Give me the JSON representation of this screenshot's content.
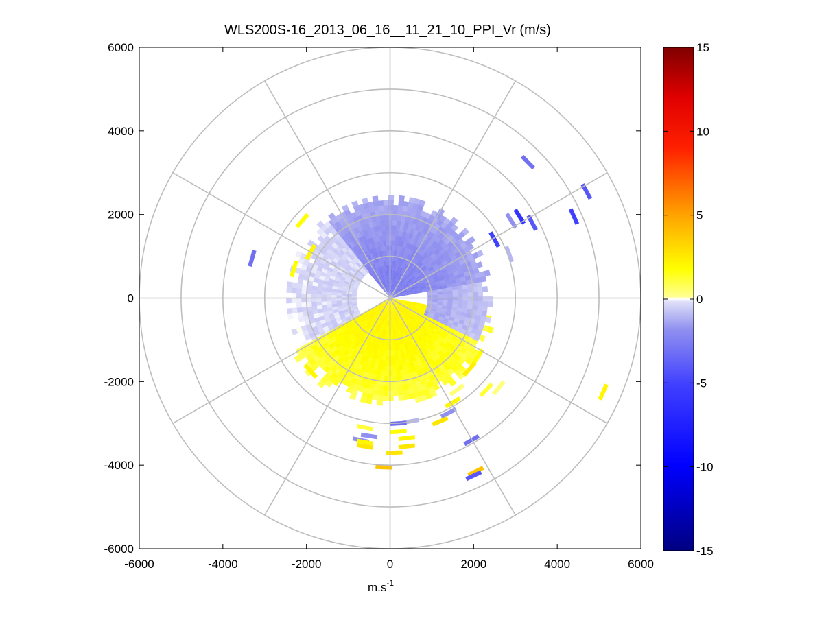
{
  "chart_data": {
    "type": "heatmap",
    "subtype": "polar-ppi",
    "title": "WLS200S-16_2013_06_16__11_21_10_PPI_Vr (m/s)",
    "xlabel": "m.s",
    "xlabel_superscript": "-1",
    "ylabel": "",
    "xlim": [
      -6000,
      6000
    ],
    "ylim": [
      -6000,
      6000
    ],
    "xticks": [
      -6000,
      -4000,
      -2000,
      0,
      2000,
      4000,
      6000
    ],
    "yticks": [
      -6000,
      -4000,
      -2000,
      0,
      2000,
      4000,
      6000
    ],
    "xtick_labels": [
      "-6000",
      "-4000",
      "-2000",
      "0",
      "2000",
      "4000",
      "6000"
    ],
    "ytick_labels": [
      "-6000",
      "-4000",
      "-2000",
      "0",
      "2000",
      "4000",
      "6000"
    ],
    "polar_grid": {
      "rings_m": [
        1000,
        2000,
        3000,
        4000,
        5000,
        6000
      ],
      "spokes_deg": [
        0,
        30,
        60,
        90,
        120,
        150,
        180,
        210,
        240,
        270,
        300,
        330
      ]
    },
    "colorbar": {
      "range": [
        -15,
        15
      ],
      "ticks": [
        -15,
        -10,
        -5,
        0,
        5,
        10,
        15
      ],
      "tick_labels": [
        "-15",
        "-10",
        "-5",
        "0",
        "5",
        "10",
        "15"
      ],
      "colormap": "blue-white-yellow-red"
    },
    "field": {
      "description_units": "radial velocity m/s",
      "north_sector": {
        "az_from_deg": -40,
        "az_to_deg": 80,
        "r_min_m": 0,
        "r_max_m": 2450,
        "vr_mean": -2.5
      },
      "west_sector": {
        "az_from_deg": 240,
        "az_to_deg": 320,
        "r_min_m": 800,
        "r_max_m": 2450,
        "vr_mean": -0.5
      },
      "south_sector": {
        "az_from_deg": 100,
        "az_to_deg": 240,
        "r_min_m": 0,
        "r_max_m": 2600,
        "vr_mean": 2.0
      },
      "east_sector": {
        "az_from_deg": 80,
        "az_to_deg": 115,
        "r_min_m": 900,
        "r_max_m": 2450,
        "vr_mean": -1.5
      }
    },
    "scattered_returns": [
      {
        "x": 3300,
        "y": 3250,
        "vr": -3
      },
      {
        "x": 4700,
        "y": 2550,
        "vr": -4
      },
      {
        "x": 4400,
        "y": 1950,
        "vr": -5
      },
      {
        "x": 3100,
        "y": 1950,
        "vr": -6
      },
      {
        "x": 3400,
        "y": 1800,
        "vr": -4
      },
      {
        "x": 2900,
        "y": 1850,
        "vr": -2
      },
      {
        "x": 2500,
        "y": 1400,
        "vr": -5
      },
      {
        "x": 2850,
        "y": 1050,
        "vr": -1
      },
      {
        "x": -3300,
        "y": 950,
        "vr": -3
      },
      {
        "x": 5100,
        "y": -2250,
        "vr": 2
      },
      {
        "x": 2100,
        "y": -1400,
        "vr": 1.5
      },
      {
        "x": 1900,
        "y": -1700,
        "vr": 2.5
      },
      {
        "x": 1600,
        "y": -2200,
        "vr": 0.5
      },
      {
        "x": 2300,
        "y": -2200,
        "vr": 1
      },
      {
        "x": 2600,
        "y": -2150,
        "vr": 0.5
      },
      {
        "x": 1500,
        "y": -2500,
        "vr": 2
      },
      {
        "x": 1400,
        "y": -2750,
        "vr": -2
      },
      {
        "x": 1200,
        "y": -2950,
        "vr": 3
      },
      {
        "x": 500,
        "y": -2950,
        "vr": -1
      },
      {
        "x": 200,
        "y": -3000,
        "vr": -3
      },
      {
        "x": 200,
        "y": -3200,
        "vr": 1.5
      },
      {
        "x": -600,
        "y": -3100,
        "vr": 1
      },
      {
        "x": -500,
        "y": -3300,
        "vr": -2
      },
      {
        "x": -700,
        "y": -3400,
        "vr": -2
      },
      {
        "x": 400,
        "y": -3350,
        "vr": 2
      },
      {
        "x": 400,
        "y": -3550,
        "vr": 3
      },
      {
        "x": -600,
        "y": -3550,
        "vr": 3
      },
      {
        "x": -600,
        "y": -3450,
        "vr": 2
      },
      {
        "x": 1950,
        "y": -3400,
        "vr": -3
      },
      {
        "x": 2050,
        "y": -4150,
        "vr": 4
      },
      {
        "x": 2000,
        "y": -4250,
        "vr": -4
      },
      {
        "x": 100,
        "y": -3700,
        "vr": 3
      },
      {
        "x": -150,
        "y": -4050,
        "vr": 4
      },
      {
        "x": -1900,
        "y": -1750,
        "vr": 2
      },
      {
        "x": -2100,
        "y": 1850,
        "vr": 1.5
      },
      {
        "x": -1900,
        "y": 1100,
        "vr": 2
      },
      {
        "x": -2300,
        "y": 700,
        "vr": 1.5
      }
    ]
  }
}
